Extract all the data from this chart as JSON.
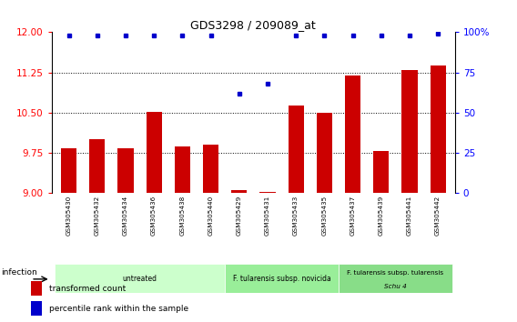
{
  "title": "GDS3298 / 209089_at",
  "samples": [
    "GSM305430",
    "GSM305432",
    "GSM305434",
    "GSM305436",
    "GSM305438",
    "GSM305440",
    "GSM305429",
    "GSM305431",
    "GSM305433",
    "GSM305435",
    "GSM305437",
    "GSM305439",
    "GSM305441",
    "GSM305442"
  ],
  "transformed_count": [
    9.83,
    10.0,
    9.83,
    10.52,
    9.87,
    9.91,
    9.05,
    9.02,
    10.63,
    10.49,
    11.2,
    9.78,
    11.3,
    11.38
  ],
  "percentile_rank": [
    98,
    98,
    98,
    98,
    98,
    98,
    62,
    68,
    98,
    98,
    98,
    98,
    98,
    99
  ],
  "bar_color": "#cc0000",
  "dot_color": "#0000cc",
  "ylim_left": [
    9,
    12
  ],
  "ylim_right": [
    0,
    100
  ],
  "yticks_left": [
    9,
    9.75,
    10.5,
    11.25,
    12
  ],
  "yticks_right": [
    0,
    25,
    50,
    75,
    100
  ],
  "groups": [
    {
      "label": "untreated",
      "start": 0,
      "end": 6,
      "color": "#ccffcc"
    },
    {
      "label": "F. tularensis subsp. novicida",
      "start": 6,
      "end": 10,
      "color": "#99ee99"
    },
    {
      "label": "F. tularensis subsp. tularensis\nSchu 4",
      "start": 10,
      "end": 14,
      "color": "#88dd88"
    }
  ],
  "infection_label": "infection",
  "legend_items": [
    {
      "color": "#cc0000",
      "label": "transformed count"
    },
    {
      "color": "#0000cc",
      "label": "percentile rank within the sample"
    }
  ],
  "dotted_lines": [
    9.75,
    10.5,
    11.25
  ],
  "background_color": "#ffffff",
  "tick_area_color": "#c8c8c8"
}
